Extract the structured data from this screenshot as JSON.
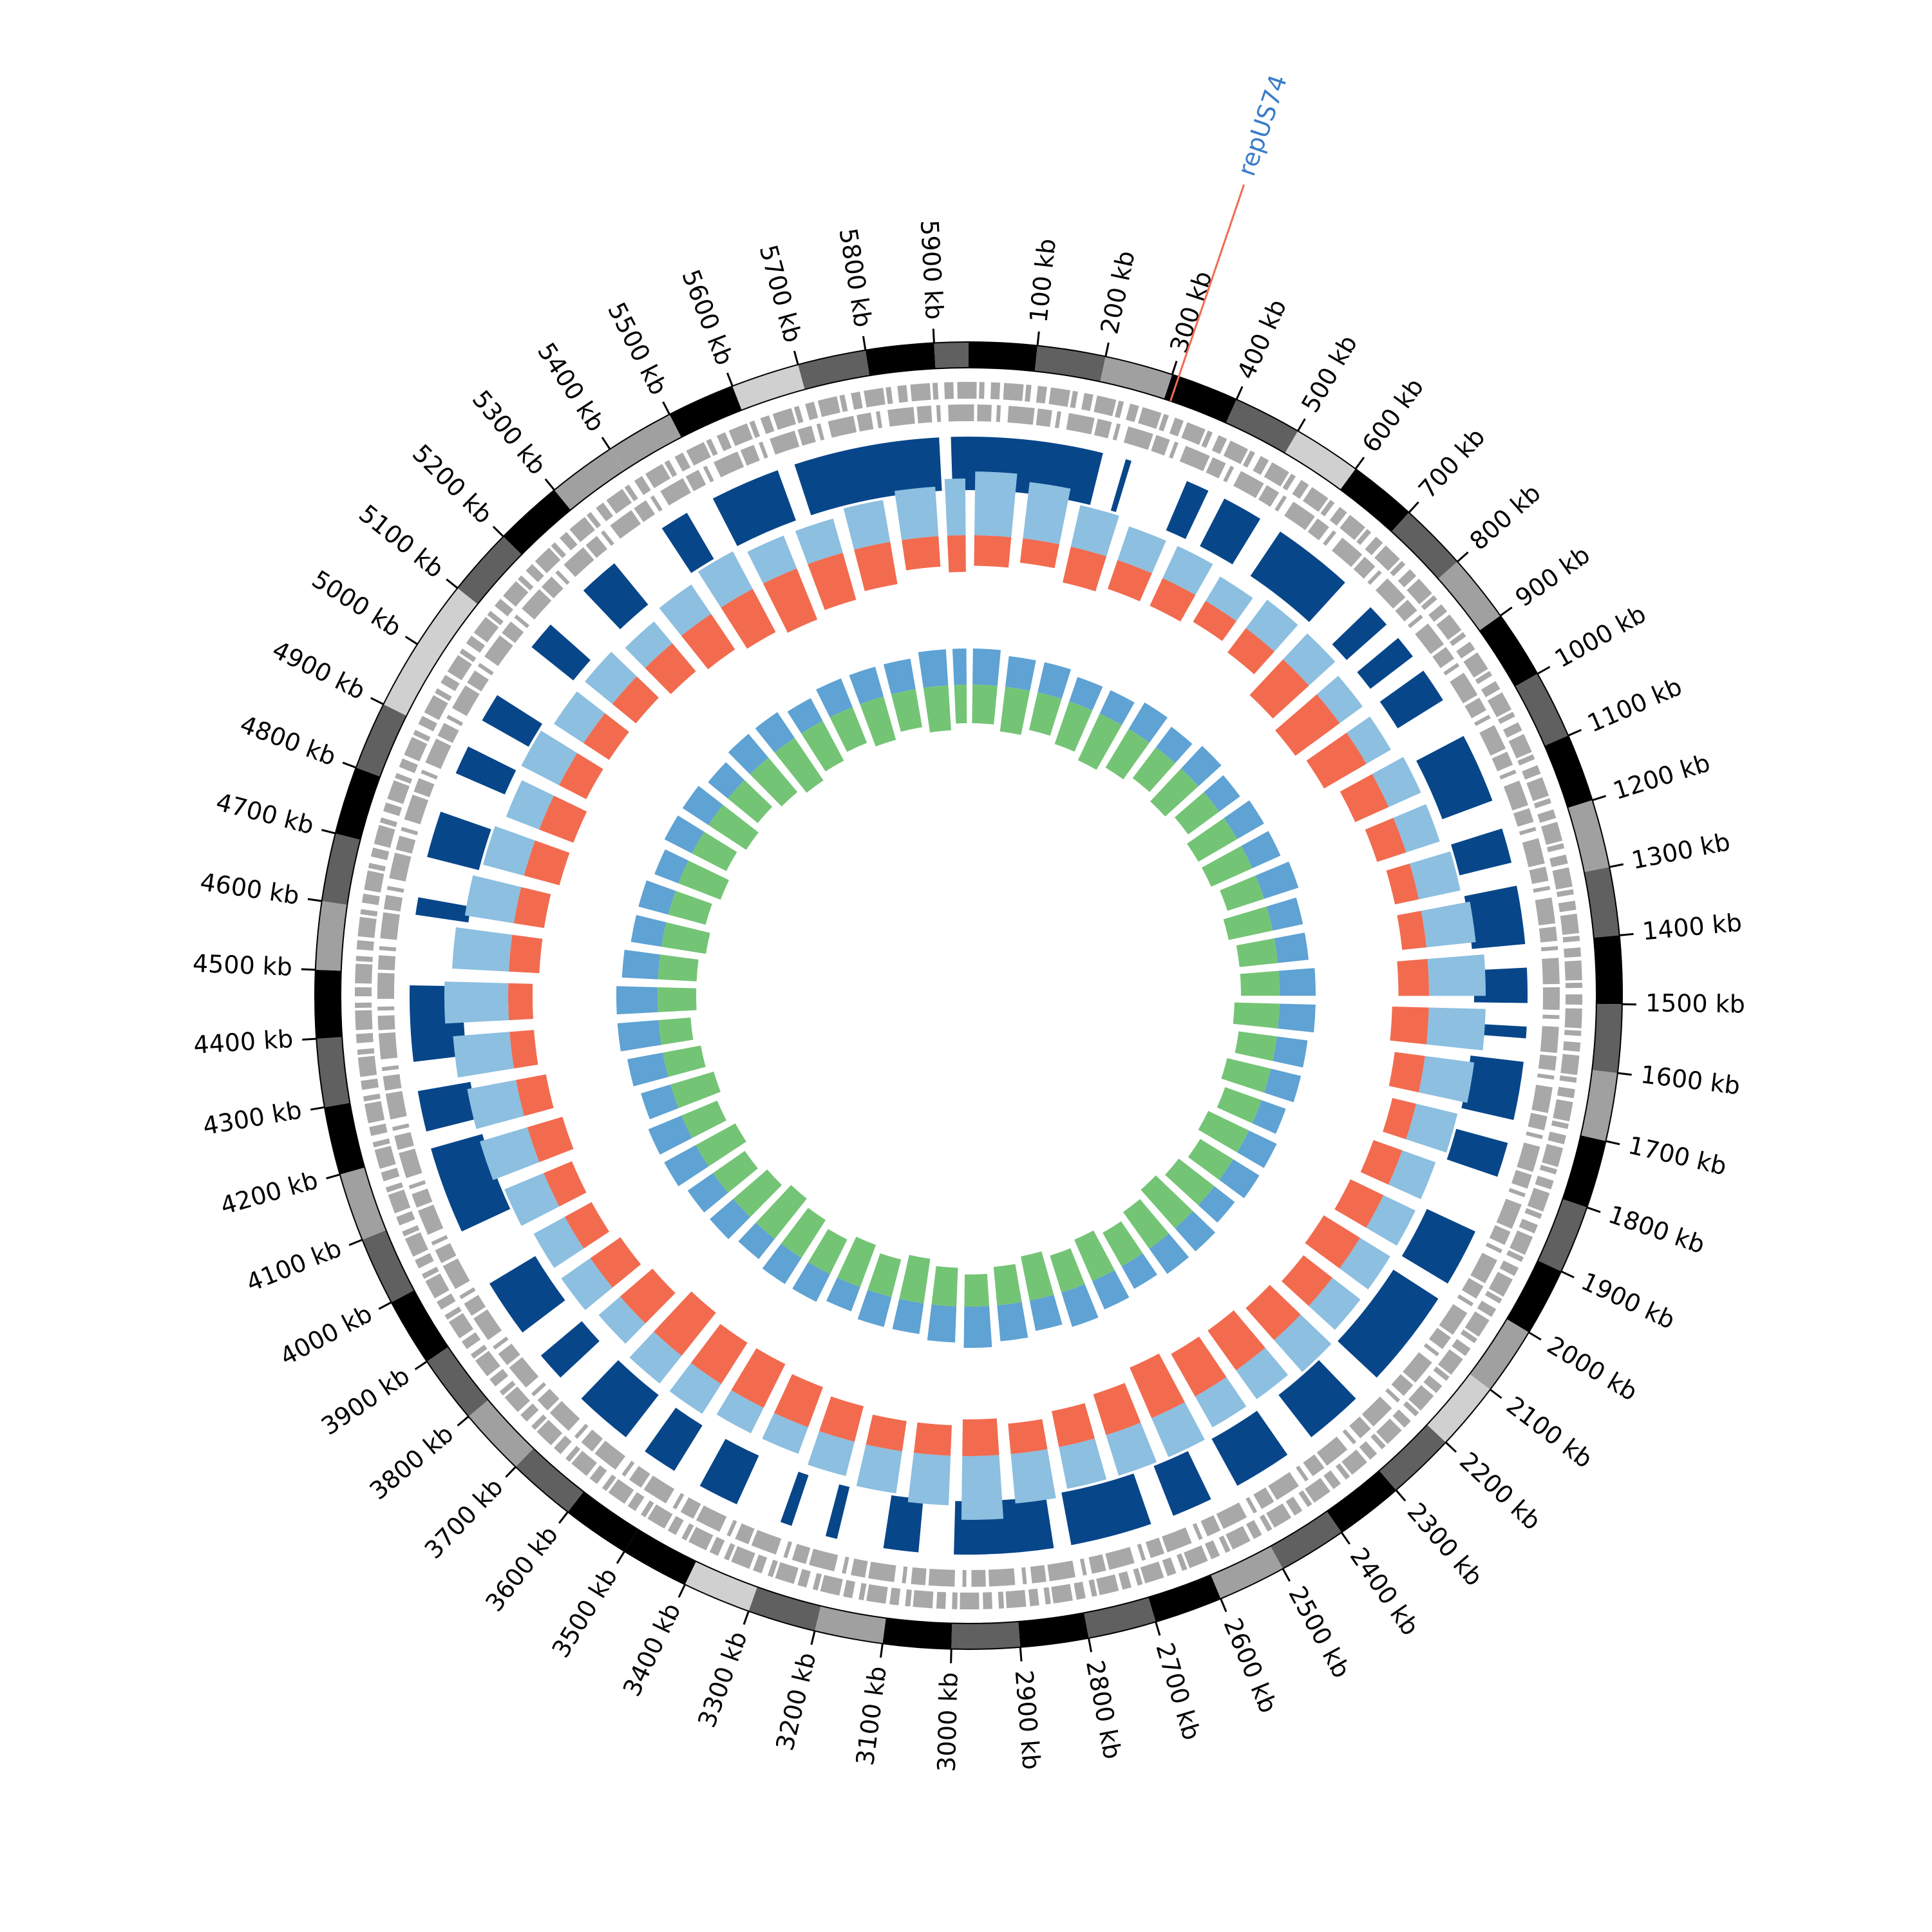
{
  "chart_data": {
    "type": "circos",
    "xlim": [
      0,
      5950
    ],
    "xticks": [
      {
        "value": 100,
        "label": "100 kb"
      },
      {
        "value": 200,
        "label": "200 kb"
      },
      {
        "value": 300,
        "label": "300 kb"
      },
      {
        "value": 400,
        "label": "400 kb"
      },
      {
        "value": 500,
        "label": "500 kb"
      },
      {
        "value": 600,
        "label": "600 kb"
      },
      {
        "value": 700,
        "label": "700 kb"
      },
      {
        "value": 800,
        "label": "800 kb"
      },
      {
        "value": 900,
        "label": "900 kb"
      },
      {
        "value": 1000,
        "label": "1000 kb"
      },
      {
        "value": 1100,
        "label": "1100 kb"
      },
      {
        "value": 1200,
        "label": "1200 kb"
      },
      {
        "value": 1300,
        "label": "1300 kb"
      },
      {
        "value": 1400,
        "label": "1400 kb"
      },
      {
        "value": 1500,
        "label": "1500 kb"
      },
      {
        "value": 1600,
        "label": "1600 kb"
      },
      {
        "value": 1700,
        "label": "1700 kb"
      },
      {
        "value": 1800,
        "label": "1800 kb"
      },
      {
        "value": 1900,
        "label": "1900 kb"
      },
      {
        "value": 2000,
        "label": "2000 kb"
      },
      {
        "value": 2100,
        "label": "2100 kb"
      },
      {
        "value": 2200,
        "label": "2200 kb"
      },
      {
        "value": 2300,
        "label": "2300 kb"
      },
      {
        "value": 2400,
        "label": "2400 kb"
      },
      {
        "value": 2500,
        "label": "2500 kb"
      },
      {
        "value": 2600,
        "label": "2600 kb"
      },
      {
        "value": 2700,
        "label": "2700 kb"
      },
      {
        "value": 2800,
        "label": "2800 kb"
      },
      {
        "value": 2900,
        "label": "2900 kb"
      },
      {
        "value": 3000,
        "label": "3000 kb"
      },
      {
        "value": 3100,
        "label": "3100 kb"
      },
      {
        "value": 3200,
        "label": "3200 kb"
      },
      {
        "value": 3300,
        "label": "3300 kb"
      },
      {
        "value": 3400,
        "label": "3400 kb"
      },
      {
        "value": 3500,
        "label": "3500 kb"
      },
      {
        "value": 3600,
        "label": "3600 kb"
      },
      {
        "value": 3700,
        "label": "3700 kb"
      },
      {
        "value": 3800,
        "label": "3800 kb"
      },
      {
        "value": 3900,
        "label": "3900 kb"
      },
      {
        "value": 4000,
        "label": "4000 kb"
      },
      {
        "value": 4100,
        "label": "4100 kb"
      },
      {
        "value": 4200,
        "label": "4200 kb"
      },
      {
        "value": 4300,
        "label": "4300 kb"
      },
      {
        "value": 4400,
        "label": "4400 kb"
      },
      {
        "value": 4500,
        "label": "4500 kb"
      },
      {
        "value": 4600,
        "label": "4600 kb"
      },
      {
        "value": 4700,
        "label": "4700 kb"
      },
      {
        "value": 4800,
        "label": "4800 kb"
      },
      {
        "value": 4900,
        "label": "4900 kb"
      },
      {
        "value": 5000,
        "label": "5000 kb"
      },
      {
        "value": 5100,
        "label": "5100 kb"
      },
      {
        "value": 5200,
        "label": "5200 kb"
      },
      {
        "value": 5300,
        "label": "5300 kb"
      },
      {
        "value": 5400,
        "label": "5400 kb"
      },
      {
        "value": 5500,
        "label": "5500 kb"
      },
      {
        "value": 5600,
        "label": "5600 kb"
      },
      {
        "value": 5700,
        "label": "5700 kb"
      },
      {
        "value": 5800,
        "label": "5800 kb"
      },
      {
        "value": 5900,
        "label": "5900 kb"
      }
    ],
    "annotation": {
      "label": "repUS74",
      "x": 310,
      "color": "#3a7dc9",
      "line_color": "#f26b4f"
    },
    "bins": [
      0,
      100,
      200,
      300,
      400,
      500,
      600,
      700,
      800,
      900,
      1000,
      1100,
      1200,
      1300,
      1400,
      1500,
      1600,
      1700,
      1800,
      1900,
      2000,
      2100,
      2200,
      2300,
      2400,
      2500,
      2600,
      2700,
      2800,
      2900,
      3000,
      3100,
      3200,
      3300,
      3400,
      3500,
      3600,
      3700,
      3800,
      3900,
      4000,
      4100,
      4200,
      4300,
      4400,
      4500,
      4600,
      4700,
      4800,
      4900,
      5000,
      5100,
      5200,
      5300,
      5400,
      5500,
      5600,
      5700,
      5800,
      5900,
      5950
    ],
    "band_palette": [
      "#ffffff",
      "#d0d0d0",
      "#a0a0a0",
      "#606060",
      "#000000"
    ],
    "bands": [
      4,
      3,
      2,
      4,
      3,
      1,
      4,
      3,
      2,
      4,
      3,
      4,
      2,
      3,
      4,
      3,
      2,
      4,
      3,
      4,
      2,
      1,
      3,
      4,
      3,
      2,
      4,
      3,
      4,
      3,
      4,
      2,
      3,
      1,
      4,
      4,
      3,
      2,
      3,
      4,
      3,
      2,
      4,
      3,
      4,
      2,
      3,
      4,
      3,
      1,
      1,
      3,
      4,
      2,
      2,
      4,
      1,
      3,
      4,
      3
    ],
    "blocks": {
      "color": "#08468a",
      "ranges": [
        [
          0,
          230
        ],
        [
          270,
          280
        ],
        [
          380,
          420
        ],
        [
          450,
          520
        ],
        [
          560,
          700
        ],
        [
          760,
          800
        ],
        [
          830,
          870
        ],
        [
          900,
          960
        ],
        [
          1030,
          1150
        ],
        [
          1200,
          1260
        ],
        [
          1300,
          1400
        ],
        [
          1440,
          1500
        ],
        [
          1540,
          1560
        ],
        [
          1600,
          1700
        ],
        [
          1740,
          1800
        ],
        [
          1900,
          2000
        ],
        [
          2030,
          2200
        ],
        [
          2250,
          2350
        ],
        [
          2400,
          2500
        ],
        [
          2550,
          2620
        ],
        [
          2660,
          2800
        ],
        [
          2830,
          3000
        ],
        [
          3060,
          3120
        ],
        [
          3200,
          3220
        ],
        [
          3280,
          3300
        ],
        [
          3380,
          3450
        ],
        [
          3500,
          3560
        ],
        [
          3600,
          3700
        ],
        [
          3750,
          3800
        ],
        [
          3850,
          3950
        ],
        [
          4050,
          4200
        ],
        [
          4230,
          4300
        ],
        [
          4350,
          4480
        ],
        [
          4600,
          4630
        ],
        [
          4700,
          4780
        ],
        [
          4850,
          4900
        ],
        [
          4950,
          5000
        ],
        [
          5100,
          5150
        ],
        [
          5230,
          5300
        ],
        [
          5400,
          5450
        ],
        [
          5500,
          5620
        ],
        [
          5650,
          5900
        ],
        [
          5920,
          5950
        ]
      ]
    },
    "histograms": [
      {
        "color": "#f26b4f",
        "direction": "in",
        "ring": 0,
        "values": [
          5,
          4,
          6,
          5,
          5,
          4,
          5,
          8,
          9,
          8,
          6,
          5,
          4,
          4,
          5,
          6,
          5,
          4,
          5,
          6,
          7,
          6,
          7,
          8,
          8,
          9,
          7,
          6,
          5,
          6,
          5,
          5,
          6,
          7,
          8,
          8,
          9,
          7,
          6,
          5,
          5,
          6,
          5,
          4,
          4,
          5,
          5,
          6,
          6,
          5,
          5,
          5,
          6,
          7,
          8,
          9,
          8,
          7,
          5,
          6
        ]
      },
      {
        "color": "#8cbfe0",
        "direction": "out",
        "ring": 0,
        "values": [
          9,
          8,
          6,
          5,
          5,
          4,
          5,
          5,
          4,
          4,
          5,
          5,
          6,
          7,
          8,
          8,
          7,
          6,
          5,
          5,
          5,
          5,
          6,
          5,
          5,
          6,
          6,
          6,
          7,
          9,
          7,
          6,
          5,
          4,
          4,
          5,
          5,
          4,
          5,
          5,
          6,
          7,
          7,
          8,
          9,
          8,
          7,
          6,
          5,
          6,
          5,
          5,
          4,
          5,
          6,
          5,
          5,
          6,
          7,
          8
        ]
      },
      {
        "color": "#5fa2d4",
        "direction": "out",
        "ring": 1,
        "values": [
          7,
          6,
          6,
          5,
          5,
          6,
          5,
          6,
          5,
          6,
          6,
          7,
          6,
          6,
          7,
          7,
          6,
          6,
          5,
          6,
          6,
          5,
          6,
          6,
          5,
          6,
          7,
          6,
          7,
          8,
          7,
          6,
          6,
          5,
          6,
          6,
          5,
          6,
          6,
          7,
          7,
          6,
          7,
          8,
          8,
          7,
          6,
          6,
          5,
          6,
          6,
          5,
          6,
          6,
          5,
          6,
          6,
          6,
          7,
          7
        ]
      },
      {
        "color": "#74c476",
        "direction": "in",
        "ring": 1,
        "values": [
          6,
          7,
          6,
          7,
          8,
          7,
          6,
          7,
          6,
          7,
          7,
          6,
          7,
          6,
          6,
          7,
          6,
          7,
          6,
          7,
          6,
          7,
          8,
          7,
          6,
          7,
          6,
          7,
          6,
          5,
          6,
          7,
          6,
          7,
          6,
          7,
          8,
          7,
          6,
          7,
          6,
          7,
          6,
          5,
          6,
          6,
          7,
          6,
          7,
          6,
          7,
          6,
          7,
          8,
          7,
          6,
          7,
          6,
          7,
          6
        ]
      }
    ]
  }
}
